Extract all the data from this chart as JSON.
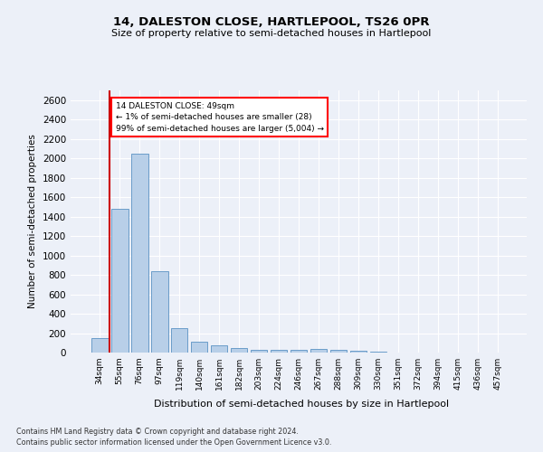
{
  "title1": "14, DALESTON CLOSE, HARTLEPOOL, TS26 0PR",
  "title2": "Size of property relative to semi-detached houses in Hartlepool",
  "xlabel": "Distribution of semi-detached houses by size in Hartlepool",
  "ylabel": "Number of semi-detached properties",
  "categories": [
    "34sqm",
    "55sqm",
    "76sqm",
    "97sqm",
    "119sqm",
    "140sqm",
    "161sqm",
    "182sqm",
    "203sqm",
    "224sqm",
    "246sqm",
    "267sqm",
    "288sqm",
    "309sqm",
    "330sqm",
    "351sqm",
    "372sqm",
    "394sqm",
    "415sqm",
    "436sqm",
    "457sqm"
  ],
  "values": [
    150,
    1480,
    2050,
    840,
    255,
    115,
    70,
    45,
    30,
    30,
    30,
    35,
    25,
    20,
    5,
    2,
    1,
    1,
    0,
    0,
    0
  ],
  "bar_color": "#b8cfe8",
  "bar_edge_color": "#6a9cc9",
  "highlight_color": "#cc0000",
  "annotation_text": "14 DALESTON CLOSE: 49sqm\n← 1% of semi-detached houses are smaller (28)\n99% of semi-detached houses are larger (5,004) →",
  "footer1": "Contains HM Land Registry data © Crown copyright and database right 2024.",
  "footer2": "Contains public sector information licensed under the Open Government Licence v3.0.",
  "ylim": [
    0,
    2700
  ],
  "bg_color": "#ecf0f8",
  "grid_color": "#ffffff"
}
